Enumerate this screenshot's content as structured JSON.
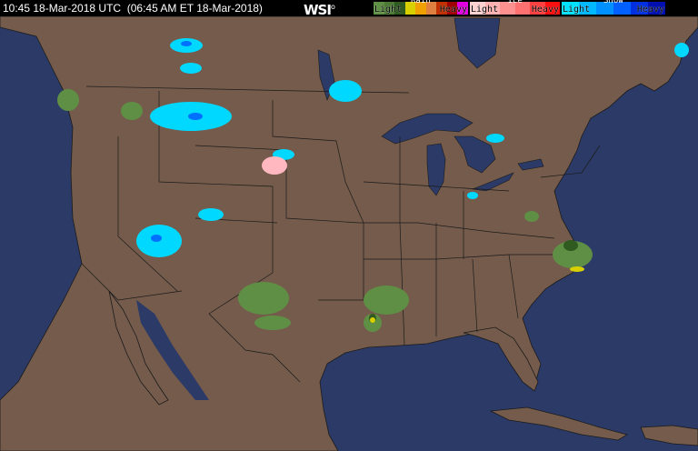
{
  "header": {
    "time_utc": "10:45 18-Mar-2018 UTC",
    "time_local": "(06:45 AM ET 18-Mar-2018)",
    "logo": "WSI"
  },
  "legend": {
    "rain": {
      "title": "Rain",
      "light": "Light",
      "heavy": "Heavy",
      "colors": [
        "#5f8f45",
        "#4c7a36",
        "#2f5a20",
        "#d8d000",
        "#f0a000",
        "#e08040",
        "#c03000",
        "#a00000",
        "#e000e0"
      ]
    },
    "ice": {
      "title": "Ice",
      "light": "Light",
      "heavy": "Heavy",
      "colors": [
        "#ffd0d0",
        "#ffb0b0",
        "#ff9090",
        "#ff7070",
        "#ff4040",
        "#ff1010"
      ]
    },
    "snow": {
      "title": "Snow",
      "light": "Light",
      "heavy": "Heavy",
      "colors": [
        "#00e0ff",
        "#00b8ff",
        "#0090ff",
        "#0060ff",
        "#0030e0",
        "#0010b0"
      ]
    }
  },
  "map": {
    "land_color": "#745b4b",
    "water_color": "#2b3a66",
    "border_color": "#000000"
  }
}
